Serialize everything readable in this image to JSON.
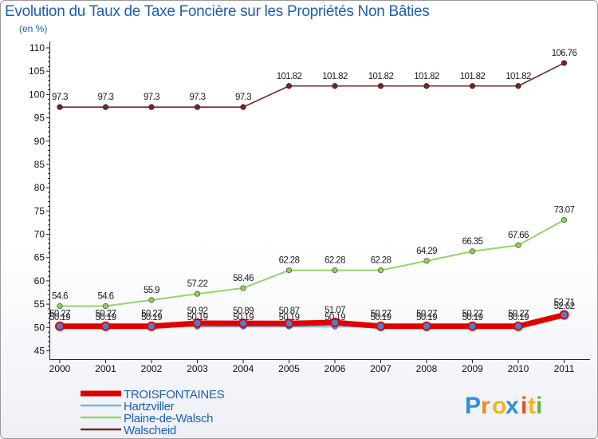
{
  "chart_data": {
    "type": "line",
    "title": "Evolution du Taux de Taxe Foncière sur les Propriétés Non Bâties",
    "subtitle": "(en %)",
    "xlabel": "",
    "ylabel": "",
    "ylim": [
      45,
      110
    ],
    "yticks": [
      45,
      50,
      55,
      60,
      65,
      70,
      75,
      80,
      85,
      90,
      95,
      100,
      105,
      110
    ],
    "categories": [
      "2000",
      "2001",
      "2002",
      "2003",
      "2004",
      "2005",
      "2006",
      "2007",
      "2008",
      "2009",
      "2010",
      "2011"
    ],
    "series": [
      {
        "name": "TROISFONTAINES",
        "color": "#e00000",
        "values": [
          50.27,
          50.27,
          50.27,
          50.92,
          50.89,
          50.87,
          51.07,
          50.27,
          50.27,
          50.27,
          50.27,
          52.71
        ],
        "labels": [
          "50.27",
          "50.27",
          "50.27",
          "50.92",
          "50.89",
          "50.87",
          "51.07",
          "50.27",
          "50.27",
          "50.27",
          "50.27",
          "52.71"
        ]
      },
      {
        "name": "Hartzviller",
        "color": "#7fb2dd",
        "values": [
          50.19,
          50.19,
          50.19,
          50.19,
          50.19,
          50.19,
          50.19,
          50.19,
          50.19,
          50.19,
          50.19,
          52.62
        ],
        "labels": [
          "50.19",
          "50.19",
          "50.19",
          "50.19",
          "50.19",
          "50.19",
          "50.19",
          "50.19",
          "50.19",
          "50.19",
          "50.19",
          "52.62"
        ]
      },
      {
        "name": "Plaine-de-Walsch",
        "color": "#99d36a",
        "values": [
          54.6,
          54.6,
          55.9,
          57.22,
          58.46,
          62.28,
          62.28,
          62.28,
          64.29,
          66.35,
          67.66,
          73.07
        ],
        "labels": [
          "54.6",
          "54.6",
          "55.9",
          "57.22",
          "58.46",
          "62.28",
          "62.28",
          "62.28",
          "64.29",
          "66.35",
          "67.66",
          "73.07"
        ]
      },
      {
        "name": "Walscheid",
        "color": "#6e2a2a",
        "values": [
          97.3,
          97.3,
          97.3,
          97.3,
          97.3,
          101.82,
          101.82,
          101.82,
          101.82,
          101.82,
          101.82,
          106.76
        ],
        "labels": [
          "97.3",
          "97.3",
          "97.3",
          "97.3",
          "97.3",
          "101.82",
          "101.82",
          "101.82",
          "101.82",
          "101.82",
          "101.82",
          "106.76"
        ]
      }
    ],
    "legend": "bottom-left",
    "grid": false
  },
  "logo": {
    "letters": [
      "P",
      "r",
      "o",
      "x",
      "i",
      "t",
      "i"
    ],
    "colors": [
      "#2f8fd8",
      "#f08a1c",
      "#f2b51c",
      "#2f8fd8",
      "#e84d1c",
      "#f2b51c",
      "#6cb33f"
    ]
  }
}
